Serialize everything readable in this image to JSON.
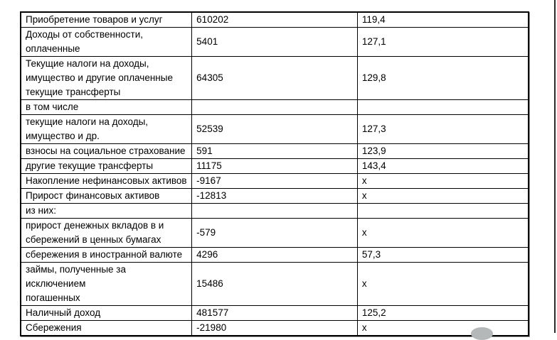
{
  "table": {
    "rows": [
      {
        "label": "Приобретение товаров и услуг",
        "value": "610202",
        "percent": "119,4"
      },
      {
        "label": "Доходы от собственности,\nоплаченные",
        "value": "5401",
        "percent": "127,1"
      },
      {
        "label": "Текущие налоги на доходы,\nимущество и другие оплаченные\nтекущие трансферты",
        "value": "64305",
        "percent": "129,8"
      },
      {
        "label": "в том числе",
        "value": "",
        "percent": ""
      },
      {
        "label": "текущие налоги на доходы,\nимущество и др.",
        "value": "52539",
        "percent": "127,3"
      },
      {
        "label": "взносы на социальное страхование",
        "value": "591",
        "percent": "123,9"
      },
      {
        "label": "другие текущие трансферты",
        "value": "11175",
        "percent": "143,4"
      },
      {
        "label": "Накопление нефинансовых активов",
        "value": "-9167",
        "percent": "x"
      },
      {
        "label": "Прирост финансовых активов",
        "value": "-12813",
        "percent": "x"
      },
      {
        "label": "из них:",
        "value": "",
        "percent": ""
      },
      {
        "label": "прирост денежных вкладов в и\nсбережений в ценных бумагах",
        "value": "-579",
        "percent": "x"
      },
      {
        "label": "сбережения в иностранной валюте",
        "value": "4296",
        "percent": "57,3"
      },
      {
        "label": "займы, полученные за исключением\nпогашенных",
        "value": "15486",
        "percent": "x"
      },
      {
        "label": "Наличный доход",
        "value": "481577",
        "percent": "125,2"
      },
      {
        "label": "Сбережения",
        "value": "-21980",
        "percent": "x"
      }
    ]
  },
  "colors": {
    "table_border": "#000000",
    "page_edge_line": "#2b2b2b",
    "watermark": "#b5b8b8"
  }
}
